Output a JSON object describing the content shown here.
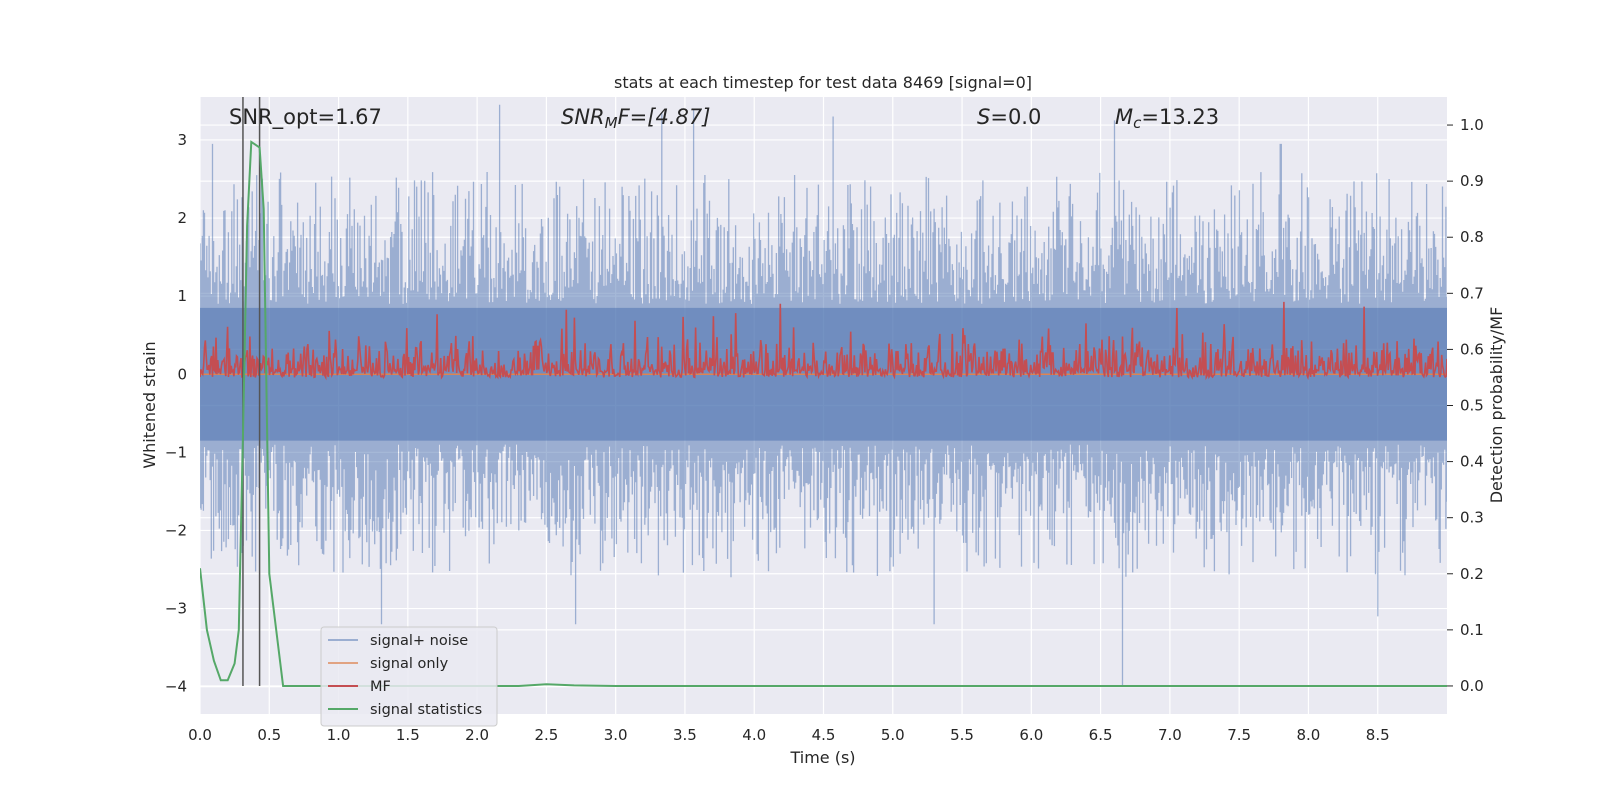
{
  "chart_data": {
    "type": "line",
    "title": "stats at each timestep for test data 8469 [signal=0]",
    "xlabel": "Time (s)",
    "ylabel_left": "Whitened strain",
    "ylabel_right": "Detection probability/MF",
    "xlim": [
      0.0,
      9.0
    ],
    "ylim_left": [
      -4.35,
      3.55
    ],
    "ylim_right": [
      -0.05,
      1.05
    ],
    "xticks": [
      "0.0",
      "0.5",
      "1.0",
      "1.5",
      "2.0",
      "2.5",
      "3.0",
      "3.5",
      "4.0",
      "4.5",
      "5.0",
      "5.5",
      "6.0",
      "6.5",
      "7.0",
      "7.5",
      "8.0",
      "8.5"
    ],
    "yticks_left": [
      "3",
      "2",
      "1",
      "0",
      "−1",
      "−2",
      "−3",
      "−4"
    ],
    "yticks_right": [
      "1.0",
      "0.9",
      "0.8",
      "0.7",
      "0.6",
      "0.5",
      "0.4",
      "0.3",
      "0.2",
      "0.1",
      "0.0"
    ],
    "annotations": {
      "snr_opt": "SNR_opt=1.67",
      "snr_mf_symbol": "SNR",
      "snr_mf_sub": "M",
      "snr_mf_rest": "F=[4.87]",
      "s_symbol": "S",
      "s_value": "=0.0",
      "mc_symbol": "M",
      "mc_sub": "c",
      "mc_value": "=13.23"
    },
    "vertical_lines_x": [
      0.31,
      0.43
    ],
    "series": [
      {
        "name": "signal+ noise",
        "axis": "left",
        "color": "#4c72b0",
        "description": "whitened noise, no injected signal; amplitude envelope roughly -2.5 to 2.5 with peaks up to 3.4 and down to -4",
        "peaks": [
          {
            "x": 0.09,
            "y": 2.95
          },
          {
            "x": 0.41,
            "y": 2.55
          },
          {
            "x": 1.31,
            "y": -3.2
          },
          {
            "x": 2.16,
            "y": 3.45
          },
          {
            "x": 2.71,
            "y": -3.2
          },
          {
            "x": 3.33,
            "y": 3.35
          },
          {
            "x": 3.56,
            "y": 3.4
          },
          {
            "x": 4.57,
            "y": 3.3
          },
          {
            "x": 5.3,
            "y": -3.2
          },
          {
            "x": 6.6,
            "y": 3.25
          },
          {
            "x": 6.66,
            "y": -4.0
          },
          {
            "x": 7.8,
            "y": 2.95
          },
          {
            "x": 8.5,
            "y": -3.1
          }
        ]
      },
      {
        "name": "signal only",
        "axis": "left",
        "color": "#dd8452",
        "description": "zero signal (flat at 0, hidden behind other series)",
        "value": 0.0
      },
      {
        "name": "MF",
        "axis": "right",
        "color": "#c44e52",
        "description": "matched-filter output oscillating between about 0.55 and 0.65 with spikes to 0.70",
        "baseline": 0.55,
        "typical_max": 0.65,
        "spike_max": 0.7
      },
      {
        "name": "signal statistics",
        "axis": "right",
        "color": "#55a868",
        "x": [
          0.0,
          0.05,
          0.1,
          0.15,
          0.2,
          0.25,
          0.28,
          0.31,
          0.34,
          0.37,
          0.4,
          0.43,
          0.46,
          0.5,
          0.55,
          0.6,
          0.8,
          1.0,
          1.5,
          2.0,
          2.3,
          2.5,
          2.7,
          3.0,
          4.0,
          5.0,
          6.0,
          7.0,
          8.0,
          9.0
        ],
        "y": [
          0.21,
          0.1,
          0.045,
          0.01,
          0.01,
          0.04,
          0.1,
          0.45,
          0.82,
          0.97,
          0.965,
          0.96,
          0.85,
          0.2,
          0.1,
          0.0,
          0.0,
          0.0,
          0.0,
          0.0,
          0.0,
          0.003,
          0.001,
          0.0,
          0.0,
          0.0,
          0.0,
          0.0,
          0.0,
          0.0
        ]
      }
    ],
    "legend": {
      "placement": "lower-left",
      "entries": [
        "signal+ noise",
        "signal only",
        "MF",
        "signal statistics"
      ]
    }
  }
}
